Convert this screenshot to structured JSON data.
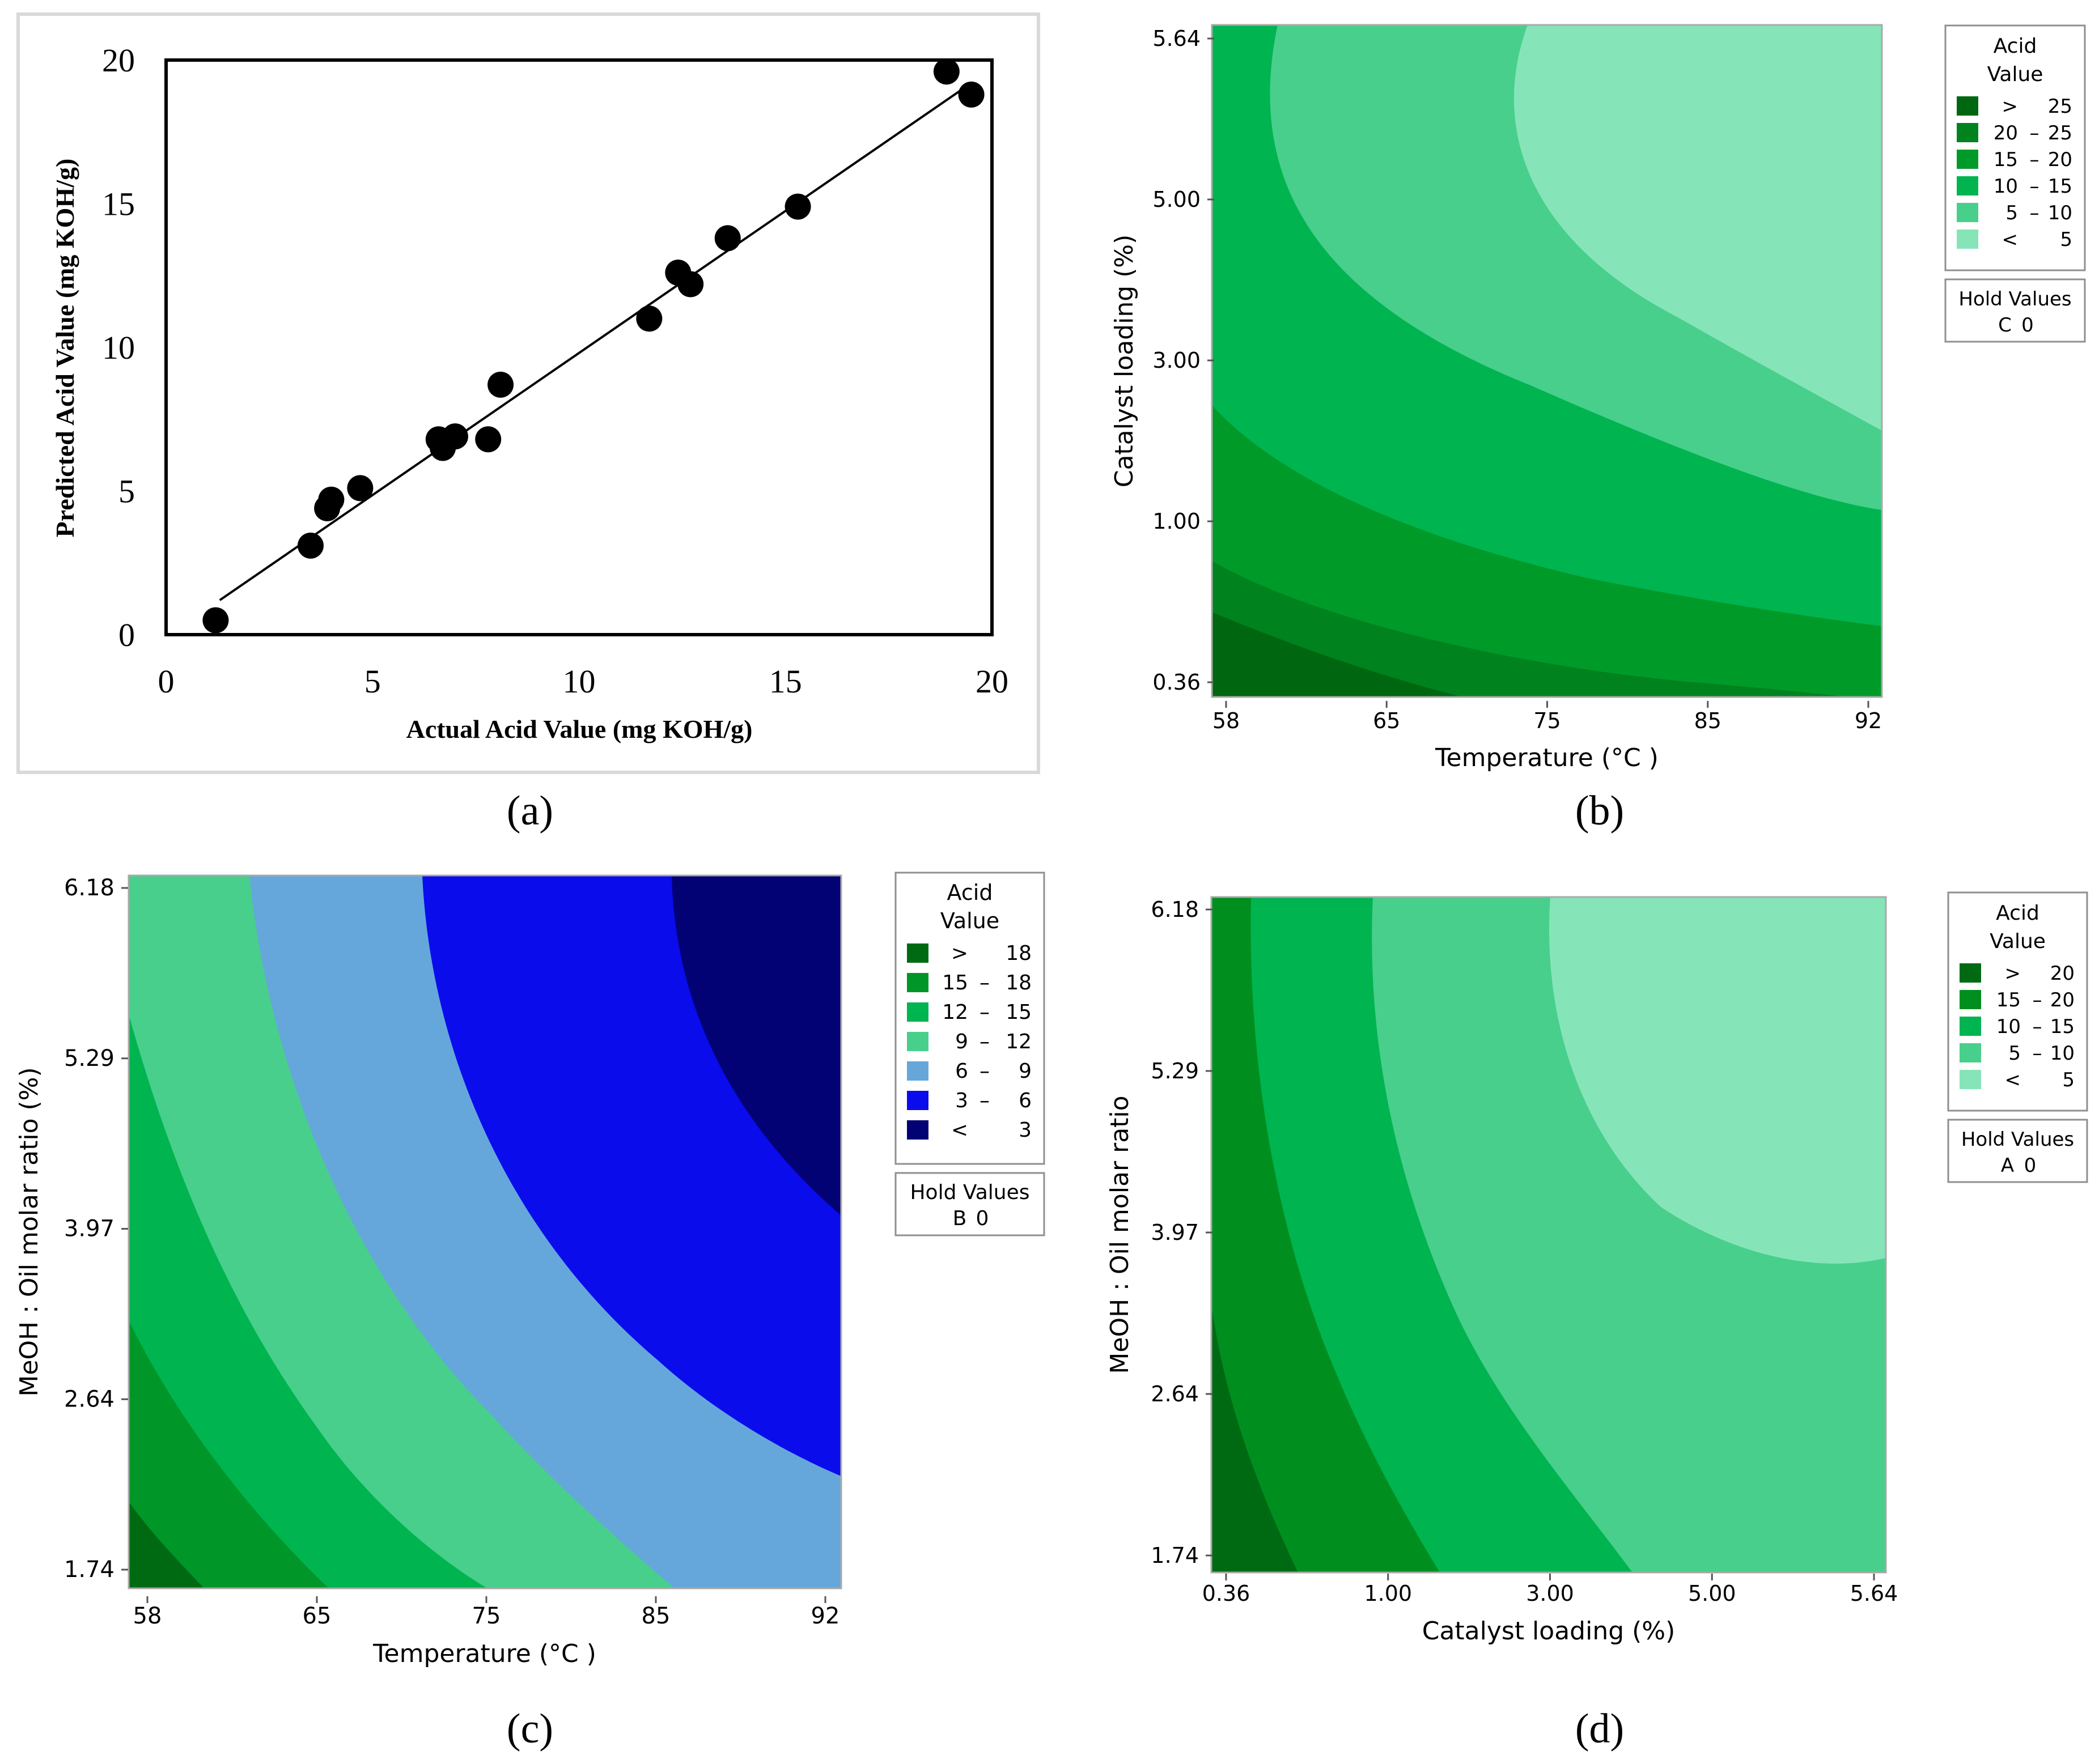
{
  "chart_data": [
    {
      "panel_label": "(a)",
      "type": "scatter",
      "xlabel": "Actual Acid Value (mg KOH/g)",
      "ylabel": "Predicted Acid Value (mg KOH/g)",
      "xlim": [
        0,
        20
      ],
      "ylim": [
        0,
        20
      ],
      "xticks": [
        "0",
        "5",
        "10",
        "15",
        "20"
      ],
      "yticks": [
        "0",
        "5",
        "10",
        "15",
        "20"
      ],
      "fit_line": {
        "x": [
          1.3,
          19.5
        ],
        "y": [
          1.2,
          19.2
        ]
      },
      "points": [
        {
          "x": 1.2,
          "y": 0.5
        },
        {
          "x": 3.5,
          "y": 3.1
        },
        {
          "x": 3.9,
          "y": 4.4
        },
        {
          "x": 4.0,
          "y": 4.7
        },
        {
          "x": 4.7,
          "y": 5.1
        },
        {
          "x": 6.6,
          "y": 6.8
        },
        {
          "x": 6.7,
          "y": 6.5
        },
        {
          "x": 7.0,
          "y": 6.9
        },
        {
          "x": 7.8,
          "y": 6.8
        },
        {
          "x": 8.1,
          "y": 8.7
        },
        {
          "x": 11.7,
          "y": 11.0
        },
        {
          "x": 12.4,
          "y": 12.6
        },
        {
          "x": 12.7,
          "y": 12.2
        },
        {
          "x": 13.6,
          "y": 13.8
        },
        {
          "x": 15.3,
          "y": 14.9
        },
        {
          "x": 18.9,
          "y": 19.6
        },
        {
          "x": 19.5,
          "y": 18.8
        }
      ]
    },
    {
      "panel_label": "(b)",
      "type": "contour",
      "xlabel": "Temperature (°C )",
      "ylabel": "Catalyst loading (%)",
      "xticks": [
        "58",
        "65",
        "75",
        "85",
        "92"
      ],
      "yticks": [
        "0.36",
        "1.00",
        "3.00",
        "5.00",
        "5.64"
      ],
      "legend_title": [
        "Acid",
        "Value"
      ],
      "levels": [
        {
          "lo": "<",
          "hi": "5",
          "color": "#86e5b8"
        },
        {
          "lo": "5",
          "hi": "10",
          "color": "#48cf8c"
        },
        {
          "lo": "10",
          "hi": "15",
          "color": "#00b450"
        },
        {
          "lo": "15",
          "hi": "20",
          "color": "#009a29"
        },
        {
          "lo": "20",
          "hi": "25",
          "color": "#00821e"
        },
        {
          "lo": ">",
          "hi": "25",
          "color": "#006710"
        }
      ],
      "hold_values": {
        "title": "Hold Values",
        "factor": "C",
        "value": "0"
      }
    },
    {
      "panel_label": "(c)",
      "type": "contour",
      "xlabel": "Temperature (°C )",
      "ylabel": "MeOH : Oil molar ratio (%)",
      "xticks": [
        "58",
        "65",
        "75",
        "85",
        "92"
      ],
      "yticks": [
        "1.74",
        "2.64",
        "3.97",
        "5.29",
        "6.18"
      ],
      "legend_title": [
        "Acid",
        "Value"
      ],
      "levels": [
        {
          "lo": "<",
          "hi": "3",
          "color": "#030275"
        },
        {
          "lo": "3",
          "hi": "6",
          "color": "#0a0cec"
        },
        {
          "lo": "6",
          "hi": "9",
          "color": "#65a7db"
        },
        {
          "lo": "9",
          "hi": "12",
          "color": "#48cf8c"
        },
        {
          "lo": "12",
          "hi": "15",
          "color": "#00b450"
        },
        {
          "lo": "15",
          "hi": "18",
          "color": "#009628"
        },
        {
          "lo": ">",
          "hi": "18",
          "color": "#006a12"
        }
      ],
      "hold_values": {
        "title": "Hold Values",
        "factor": "B",
        "value": "0"
      }
    },
    {
      "panel_label": "(d)",
      "type": "contour",
      "xlabel": "Catalyst loading (%)",
      "ylabel": "MeOH : Oil molar ratio",
      "xticks": [
        "0.36",
        "1.00",
        "3.00",
        "5.00",
        "5.64"
      ],
      "yticks": [
        "1.74",
        "2.64",
        "3.97",
        "5.29",
        "6.18"
      ],
      "legend_title": [
        "Acid",
        "Value"
      ],
      "levels": [
        {
          "lo": "<",
          "hi": "5",
          "color": "#86e5b8"
        },
        {
          "lo": "5",
          "hi": "10",
          "color": "#48cf8c"
        },
        {
          "lo": "10",
          "hi": "15",
          "color": "#00b450"
        },
        {
          "lo": "15",
          "hi": "20",
          "color": "#008f1f"
        },
        {
          "lo": ">",
          "hi": "20",
          "color": "#006a12"
        }
      ],
      "hold_values": {
        "title": "Hold Values",
        "factor": "A",
        "value": "0"
      }
    }
  ]
}
